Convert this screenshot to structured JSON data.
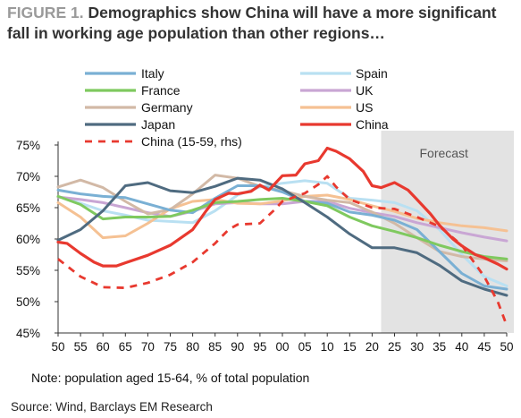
{
  "figure": {
    "label": "FIGURE 1.",
    "title": "Demographics show China will have a more significant fall in working age population than other regions…",
    "note": "Note: population aged 15-64, % of total population",
    "source": "Source: Wind, Barclays EM Research"
  },
  "chart_data": {
    "type": "line",
    "x_tick_labels": [
      "50",
      "55",
      "60",
      "65",
      "70",
      "75",
      "80",
      "85",
      "90",
      "95",
      "00",
      "05",
      "10",
      "15",
      "20",
      "25",
      "30",
      "35",
      "40",
      "45",
      "50"
    ],
    "x_range": [
      1950,
      2050
    ],
    "y_range": [
      45,
      75
    ],
    "y_tick_labels": [
      "75%",
      "70%",
      "65%",
      "60%",
      "55%",
      "50%",
      "45%"
    ],
    "forecast": {
      "label": "Forecast",
      "start_year": 2022,
      "end_year": 2050
    },
    "legend_placement": "top",
    "series": [
      {
        "name": "Italy",
        "color": "#7ab0d4",
        "points": [
          [
            1950,
            67.8
          ],
          [
            1955,
            67.2
          ],
          [
            1960,
            66.8
          ],
          [
            1965,
            66.6
          ],
          [
            1970,
            65.6
          ],
          [
            1975,
            64.6
          ],
          [
            1980,
            64.2
          ],
          [
            1985,
            66.5
          ],
          [
            1990,
            68.5
          ],
          [
            1995,
            68.5
          ],
          [
            2000,
            67.5
          ],
          [
            2005,
            66.0
          ],
          [
            2010,
            65.7
          ],
          [
            2015,
            64.3
          ],
          [
            2020,
            63.8
          ],
          [
            2025,
            63.0
          ],
          [
            2030,
            61.5
          ],
          [
            2035,
            58.0
          ],
          [
            2040,
            54.5
          ],
          [
            2045,
            52.5
          ],
          [
            2050,
            52.0
          ]
        ]
      },
      {
        "name": "Spain",
        "color": "#b9e0f2",
        "points": [
          [
            1950,
            66.8
          ],
          [
            1955,
            65.7
          ],
          [
            1960,
            64.5
          ],
          [
            1965,
            63.8
          ],
          [
            1970,
            63.0
          ],
          [
            1975,
            62.8
          ],
          [
            1980,
            62.6
          ],
          [
            1985,
            64.5
          ],
          [
            1990,
            67.0
          ],
          [
            1995,
            68.3
          ],
          [
            2000,
            68.9
          ],
          [
            2005,
            69.3
          ],
          [
            2010,
            68.9
          ],
          [
            2015,
            66.5
          ],
          [
            2020,
            66.2
          ],
          [
            2025,
            65.8
          ],
          [
            2030,
            64.5
          ],
          [
            2035,
            61.5
          ],
          [
            2040,
            57.5
          ],
          [
            2045,
            54.0
          ],
          [
            2050,
            52.5
          ]
        ]
      },
      {
        "name": "France",
        "color": "#7fc95f",
        "points": [
          [
            1950,
            66.8
          ],
          [
            1955,
            65.5
          ],
          [
            1960,
            63.2
          ],
          [
            1965,
            63.5
          ],
          [
            1970,
            63.5
          ],
          [
            1975,
            63.6
          ],
          [
            1980,
            64.6
          ],
          [
            1985,
            65.8
          ],
          [
            1990,
            66.0
          ],
          [
            1995,
            66.3
          ],
          [
            2000,
            66.5
          ],
          [
            2005,
            66.0
          ],
          [
            2010,
            65.3
          ],
          [
            2015,
            63.5
          ],
          [
            2020,
            62.1
          ],
          [
            2025,
            61.2
          ],
          [
            2030,
            60.2
          ],
          [
            2035,
            59.0
          ],
          [
            2040,
            58.0
          ],
          [
            2045,
            57.2
          ],
          [
            2050,
            56.8
          ]
        ]
      },
      {
        "name": "UK",
        "color": "#c9a6d4",
        "points": [
          [
            1950,
            66.7
          ],
          [
            1955,
            66.3
          ],
          [
            1960,
            65.8
          ],
          [
            1965,
            65.0
          ],
          [
            1970,
            64.2
          ],
          [
            1975,
            63.6
          ],
          [
            1980,
            64.4
          ],
          [
            1985,
            65.6
          ],
          [
            1990,
            65.8
          ],
          [
            1995,
            65.6
          ],
          [
            2000,
            65.6
          ],
          [
            2005,
            66.0
          ],
          [
            2010,
            66.0
          ],
          [
            2015,
            64.9
          ],
          [
            2020,
            64.2
          ],
          [
            2025,
            63.6
          ],
          [
            2030,
            62.6
          ],
          [
            2035,
            61.8
          ],
          [
            2040,
            61.0
          ],
          [
            2045,
            60.3
          ],
          [
            2050,
            59.7
          ]
        ]
      },
      {
        "name": "Germany",
        "color": "#d2b9a6",
        "points": [
          [
            1950,
            68.3
          ],
          [
            1955,
            69.4
          ],
          [
            1960,
            68.2
          ],
          [
            1965,
            66.0
          ],
          [
            1970,
            64.0
          ],
          [
            1975,
            64.7
          ],
          [
            1980,
            67.2
          ],
          [
            1985,
            70.2
          ],
          [
            1990,
            69.7
          ],
          [
            1995,
            68.4
          ],
          [
            2000,
            67.7
          ],
          [
            2005,
            66.8
          ],
          [
            2010,
            66.2
          ],
          [
            2015,
            65.8
          ],
          [
            2020,
            64.3
          ],
          [
            2025,
            62.5
          ],
          [
            2030,
            60.2
          ],
          [
            2035,
            58.0
          ],
          [
            2040,
            57.2
          ],
          [
            2045,
            56.8
          ],
          [
            2050,
            56.5
          ]
        ]
      },
      {
        "name": "US",
        "color": "#f5c193",
        "points": [
          [
            1950,
            65.8
          ],
          [
            1955,
            63.5
          ],
          [
            1960,
            60.2
          ],
          [
            1965,
            60.5
          ],
          [
            1970,
            62.5
          ],
          [
            1975,
            64.8
          ],
          [
            1980,
            66.0
          ],
          [
            1985,
            66.3
          ],
          [
            1990,
            65.7
          ],
          [
            1995,
            65.6
          ],
          [
            2000,
            66.1
          ],
          [
            2005,
            66.8
          ],
          [
            2010,
            67.0
          ],
          [
            2015,
            66.3
          ],
          [
            2020,
            65.3
          ],
          [
            2025,
            64.4
          ],
          [
            2030,
            63.3
          ],
          [
            2035,
            62.6
          ],
          [
            2040,
            62.1
          ],
          [
            2045,
            61.8
          ],
          [
            2050,
            61.3
          ]
        ]
      },
      {
        "name": "Japan",
        "color": "#4f6b80",
        "points": [
          [
            1950,
            59.8
          ],
          [
            1955,
            61.5
          ],
          [
            1960,
            64.5
          ],
          [
            1965,
            68.5
          ],
          [
            1970,
            69.0
          ],
          [
            1975,
            67.7
          ],
          [
            1980,
            67.4
          ],
          [
            1985,
            68.4
          ],
          [
            1990,
            69.7
          ],
          [
            1995,
            69.4
          ],
          [
            2000,
            68.0
          ],
          [
            2005,
            65.8
          ],
          [
            2010,
            63.5
          ],
          [
            2015,
            60.8
          ],
          [
            2020,
            58.6
          ],
          [
            2025,
            58.6
          ],
          [
            2030,
            57.8
          ],
          [
            2035,
            55.8
          ],
          [
            2040,
            53.3
          ],
          [
            2045,
            52.0
          ],
          [
            2050,
            51.0
          ]
        ]
      },
      {
        "name": "China",
        "color": "#e8392f",
        "points": [
          [
            1950,
            59.5
          ],
          [
            1952,
            59.3
          ],
          [
            1955,
            57.7
          ],
          [
            1958,
            56.3
          ],
          [
            1960,
            55.7
          ],
          [
            1963,
            55.7
          ],
          [
            1965,
            56.2
          ],
          [
            1970,
            57.4
          ],
          [
            1975,
            59.0
          ],
          [
            1980,
            61.5
          ],
          [
            1983,
            64.5
          ],
          [
            1985,
            66.3
          ],
          [
            1988,
            67.3
          ],
          [
            1990,
            67.2
          ],
          [
            1993,
            67.6
          ],
          [
            1995,
            68.6
          ],
          [
            1997,
            67.8
          ],
          [
            2000,
            70.1
          ],
          [
            2003,
            70.2
          ],
          [
            2005,
            72.0
          ],
          [
            2008,
            72.5
          ],
          [
            2010,
            74.5
          ],
          [
            2012,
            74.0
          ],
          [
            2015,
            72.8
          ],
          [
            2018,
            70.8
          ],
          [
            2020,
            68.5
          ],
          [
            2022,
            68.2
          ],
          [
            2025,
            69.0
          ],
          [
            2028,
            67.8
          ],
          [
            2030,
            66.3
          ],
          [
            2033,
            64.0
          ],
          [
            2035,
            62.2
          ],
          [
            2038,
            60.0
          ],
          [
            2040,
            58.9
          ],
          [
            2043,
            57.5
          ],
          [
            2045,
            57.0
          ],
          [
            2048,
            56.0
          ],
          [
            2050,
            55.2
          ]
        ]
      },
      {
        "name": "China (15-59, rhs)",
        "color": "#e8392f",
        "dashed": true,
        "points": [
          [
            1950,
            56.8
          ],
          [
            1955,
            54.0
          ],
          [
            1960,
            52.3
          ],
          [
            1965,
            52.2
          ],
          [
            1970,
            53.0
          ],
          [
            1975,
            54.3
          ],
          [
            1980,
            56.3
          ],
          [
            1985,
            59.3
          ],
          [
            1988,
            61.5
          ],
          [
            1990,
            62.3
          ],
          [
            1995,
            62.5
          ],
          [
            1998,
            64.5
          ],
          [
            2000,
            66.0
          ],
          [
            2005,
            67.3
          ],
          [
            2008,
            68.7
          ],
          [
            2010,
            70.0
          ],
          [
            2012,
            68.3
          ],
          [
            2015,
            66.3
          ],
          [
            2020,
            65.0
          ],
          [
            2025,
            64.8
          ],
          [
            2030,
            63.5
          ],
          [
            2035,
            62.0
          ],
          [
            2040,
            59.0
          ],
          [
            2045,
            54.0
          ],
          [
            2048,
            50.0
          ],
          [
            2050,
            46.2
          ]
        ]
      }
    ]
  }
}
